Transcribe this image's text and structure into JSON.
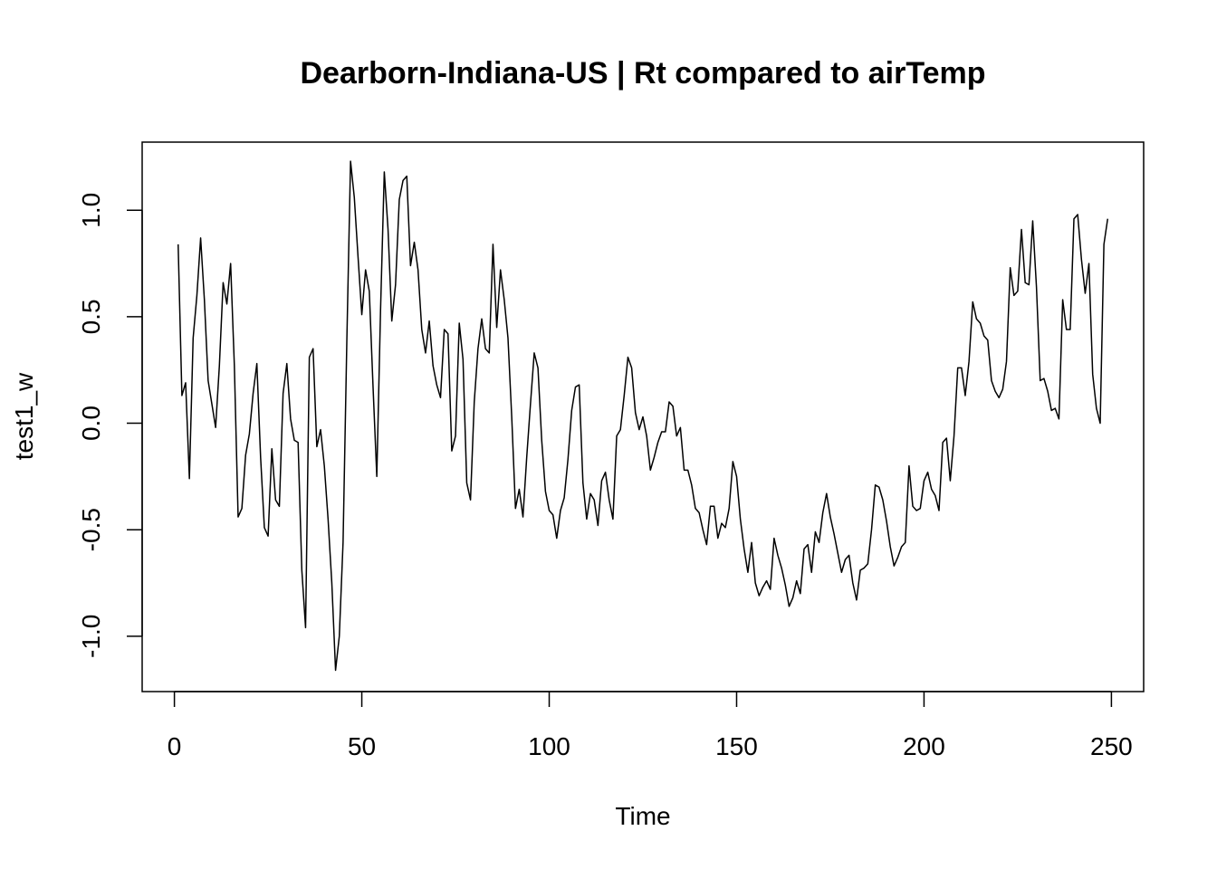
{
  "chart_data": {
    "type": "line",
    "title": "Dearborn-Indiana-US | Rt compared to airTemp",
    "xlabel": "Time",
    "ylabel": "test1_w",
    "xlim": [
      -8.6,
      258.6
    ],
    "ylim": [
      -1.26,
      1.32
    ],
    "x_ticks": [
      0,
      50,
      100,
      150,
      200,
      250
    ],
    "x_tick_labels": [
      "0",
      "50",
      "100",
      "150",
      "200",
      "250"
    ],
    "y_ticks": [
      -1.0,
      -0.5,
      0.0,
      0.5,
      1.0
    ],
    "y_tick_labels": [
      "-1.0",
      "-0.5",
      "0.0",
      "0.5",
      "1.0"
    ],
    "grid": false,
    "line_color": "#000000",
    "x_start": 1,
    "series": [
      {
        "values": [
          0.84,
          0.13,
          0.19,
          -0.26,
          0.4,
          0.6,
          0.87,
          0.58,
          0.2,
          0.09,
          -0.02,
          0.27,
          0.66,
          0.56,
          0.75,
          0.27,
          -0.44,
          -0.4,
          -0.15,
          -0.05,
          0.14,
          0.28,
          -0.16,
          -0.49,
          -0.53,
          -0.12,
          -0.36,
          -0.39,
          0.14,
          0.28,
          0.02,
          -0.08,
          -0.09,
          -0.69,
          -0.96,
          0.31,
          0.35,
          -0.11,
          -0.03,
          -0.2,
          -0.45,
          -0.75,
          -1.16,
          -1.0,
          -0.56,
          0.38,
          1.23,
          1.06,
          0.78,
          0.51,
          0.72,
          0.62,
          0.17,
          -0.25,
          0.53,
          1.18,
          0.91,
          0.48,
          0.65,
          1.05,
          1.14,
          1.16,
          0.74,
          0.85,
          0.72,
          0.44,
          0.33,
          0.48,
          0.27,
          0.18,
          0.12,
          0.44,
          0.42,
          -0.13,
          -0.06,
          0.47,
          0.3,
          -0.28,
          -0.36,
          0.1,
          0.35,
          0.49,
          0.35,
          0.33,
          0.84,
          0.45,
          0.72,
          0.58,
          0.4,
          0.03,
          -0.4,
          -0.31,
          -0.44,
          -0.16,
          0.09,
          0.33,
          0.26,
          -0.08,
          -0.32,
          -0.41,
          -0.43,
          -0.54,
          -0.41,
          -0.35,
          -0.17,
          0.06,
          0.17,
          0.18,
          -0.28,
          -0.45,
          -0.33,
          -0.36,
          -0.48,
          -0.27,
          -0.23,
          -0.36,
          -0.45,
          -0.06,
          -0.03,
          0.13,
          0.31,
          0.26,
          0.05,
          -0.03,
          0.03,
          -0.06,
          -0.22,
          -0.16,
          -0.09,
          -0.04,
          -0.04,
          0.1,
          0.08,
          -0.06,
          -0.02,
          -0.22,
          -0.22,
          -0.29,
          -0.4,
          -0.42,
          -0.5,
          -0.57,
          -0.39,
          -0.39,
          -0.54,
          -0.47,
          -0.49,
          -0.4,
          -0.18,
          -0.25,
          -0.45,
          -0.59,
          -0.7,
          -0.56,
          -0.75,
          -0.81,
          -0.77,
          -0.74,
          -0.78,
          -0.54,
          -0.62,
          -0.68,
          -0.76,
          -0.86,
          -0.82,
          -0.74,
          -0.8,
          -0.59,
          -0.57,
          -0.7,
          -0.51,
          -0.56,
          -0.42,
          -0.33,
          -0.44,
          -0.52,
          -0.61,
          -0.7,
          -0.64,
          -0.62,
          -0.75,
          -0.83,
          -0.69,
          -0.68,
          -0.66,
          -0.5,
          -0.29,
          -0.3,
          -0.36,
          -0.46,
          -0.58,
          -0.67,
          -0.63,
          -0.58,
          -0.56,
          -0.2,
          -0.39,
          -0.41,
          -0.4,
          -0.27,
          -0.23,
          -0.31,
          -0.34,
          -0.41,
          -0.09,
          -0.07,
          -0.27,
          -0.06,
          0.26,
          0.26,
          0.13,
          0.29,
          0.57,
          0.49,
          0.47,
          0.41,
          0.39,
          0.2,
          0.15,
          0.12,
          0.16,
          0.29,
          0.73,
          0.6,
          0.62,
          0.91,
          0.66,
          0.65,
          0.95,
          0.64,
          0.2,
          0.21,
          0.15,
          0.06,
          0.07,
          0.02,
          0.58,
          0.44,
          0.44,
          0.96,
          0.98,
          0.77,
          0.61,
          0.75,
          0.23,
          0.07,
          0.0,
          0.84,
          0.96
        ]
      }
    ]
  }
}
